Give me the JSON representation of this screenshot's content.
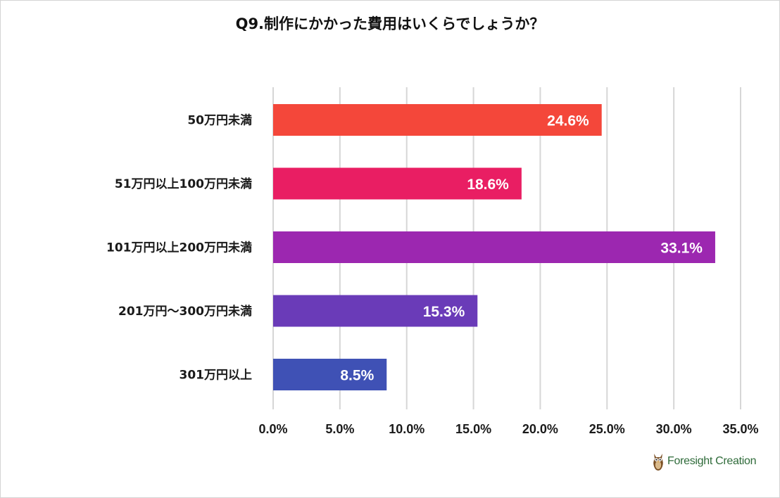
{
  "chart_data": {
    "type": "bar",
    "orientation": "horizontal",
    "title": "Q9.制作にかかった費用はいくらでしょうか？",
    "categories": [
      "50万円未満",
      "51万円以上100万円未満",
      "101万円以上200万円未満",
      "201万円〜300万円未満",
      "301万円以上"
    ],
    "values": [
      24.6,
      18.6,
      33.1,
      15.3,
      8.5
    ],
    "value_labels": [
      "24.6%",
      "18.6%",
      "33.1%",
      "15.3%",
      "8.5%"
    ],
    "bar_colors": [
      "#f4473a",
      "#e91e63",
      "#9c27b0",
      "#6a3bb8",
      "#3f51b5"
    ],
    "xlim": [
      0,
      35
    ],
    "x_ticks": [
      0,
      5,
      10,
      15,
      20,
      25,
      30,
      35
    ],
    "x_tick_labels": [
      "0.0%",
      "5.0%",
      "10.0%",
      "15.0%",
      "20.0%",
      "25.0%",
      "30.0%",
      "35.0%"
    ],
    "grid": true,
    "xlabel": "",
    "ylabel": ""
  },
  "logo": {
    "text": "Foresight Creation",
    "icon": "owl-icon",
    "color": "#2f6b3a"
  }
}
